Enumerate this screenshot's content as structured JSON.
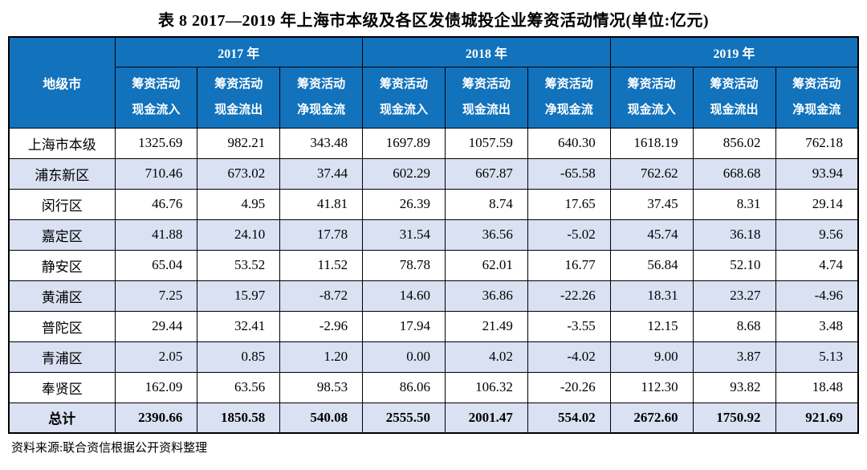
{
  "title": "表 8  2017—2019 年上海市本级及各区发债城投企业筹资活动情况(单位:亿元)",
  "source_note": "资料来源:联合资信根据公开资料整理",
  "colors": {
    "header_bg": "#1272BC",
    "header_text": "#FFFFFF",
    "alt_row_bg": "#D9E1F2",
    "border": "#000000"
  },
  "table": {
    "region_header": "地级市",
    "year_groups": [
      {
        "label": "2017 年",
        "columns": [
          {
            "line1": "筹资活动",
            "line2": "现金流入"
          },
          {
            "line1": "筹资活动",
            "line2": "现金流出"
          },
          {
            "line1": "筹资活动",
            "line2": "净现金流"
          }
        ]
      },
      {
        "label": "2018 年",
        "columns": [
          {
            "line1": "筹资活动",
            "line2": "现金流入"
          },
          {
            "line1": "筹资活动",
            "line2": "现金流出"
          },
          {
            "line1": "筹资活动",
            "line2": "净现金流"
          }
        ]
      },
      {
        "label": "2019 年",
        "columns": [
          {
            "line1": "筹资活动",
            "line2": "现金流入"
          },
          {
            "line1": "筹资活动",
            "line2": "现金流出"
          },
          {
            "line1": "筹资活动",
            "line2": "净现金流"
          }
        ]
      }
    ],
    "rows": [
      {
        "region": "上海市本级",
        "values": [
          "1325.69",
          "982.21",
          "343.48",
          "1697.89",
          "1057.59",
          "640.30",
          "1618.19",
          "856.02",
          "762.18"
        ]
      },
      {
        "region": "浦东新区",
        "values": [
          "710.46",
          "673.02",
          "37.44",
          "602.29",
          "667.87",
          "-65.58",
          "762.62",
          "668.68",
          "93.94"
        ]
      },
      {
        "region": "闵行区",
        "values": [
          "46.76",
          "4.95",
          "41.81",
          "26.39",
          "8.74",
          "17.65",
          "37.45",
          "8.31",
          "29.14"
        ]
      },
      {
        "region": "嘉定区",
        "values": [
          "41.88",
          "24.10",
          "17.78",
          "31.54",
          "36.56",
          "-5.02",
          "45.74",
          "36.18",
          "9.56"
        ]
      },
      {
        "region": "静安区",
        "values": [
          "65.04",
          "53.52",
          "11.52",
          "78.78",
          "62.01",
          "16.77",
          "56.84",
          "52.10",
          "4.74"
        ]
      },
      {
        "region": "黄浦区",
        "values": [
          "7.25",
          "15.97",
          "-8.72",
          "14.60",
          "36.86",
          "-22.26",
          "18.31",
          "23.27",
          "-4.96"
        ]
      },
      {
        "region": "普陀区",
        "values": [
          "29.44",
          "32.41",
          "-2.96",
          "17.94",
          "21.49",
          "-3.55",
          "12.15",
          "8.68",
          "3.48"
        ]
      },
      {
        "region": "青浦区",
        "values": [
          "2.05",
          "0.85",
          "1.20",
          "0.00",
          "4.02",
          "-4.02",
          "9.00",
          "3.87",
          "5.13"
        ]
      },
      {
        "region": "奉贤区",
        "values": [
          "162.09",
          "63.56",
          "98.53",
          "86.06",
          "106.32",
          "-20.26",
          "112.30",
          "93.82",
          "18.48"
        ]
      },
      {
        "region": "总计",
        "values": [
          "2390.66",
          "1850.58",
          "540.08",
          "2555.50",
          "2001.47",
          "554.02",
          "2672.60",
          "1750.92",
          "921.69"
        ]
      }
    ]
  }
}
